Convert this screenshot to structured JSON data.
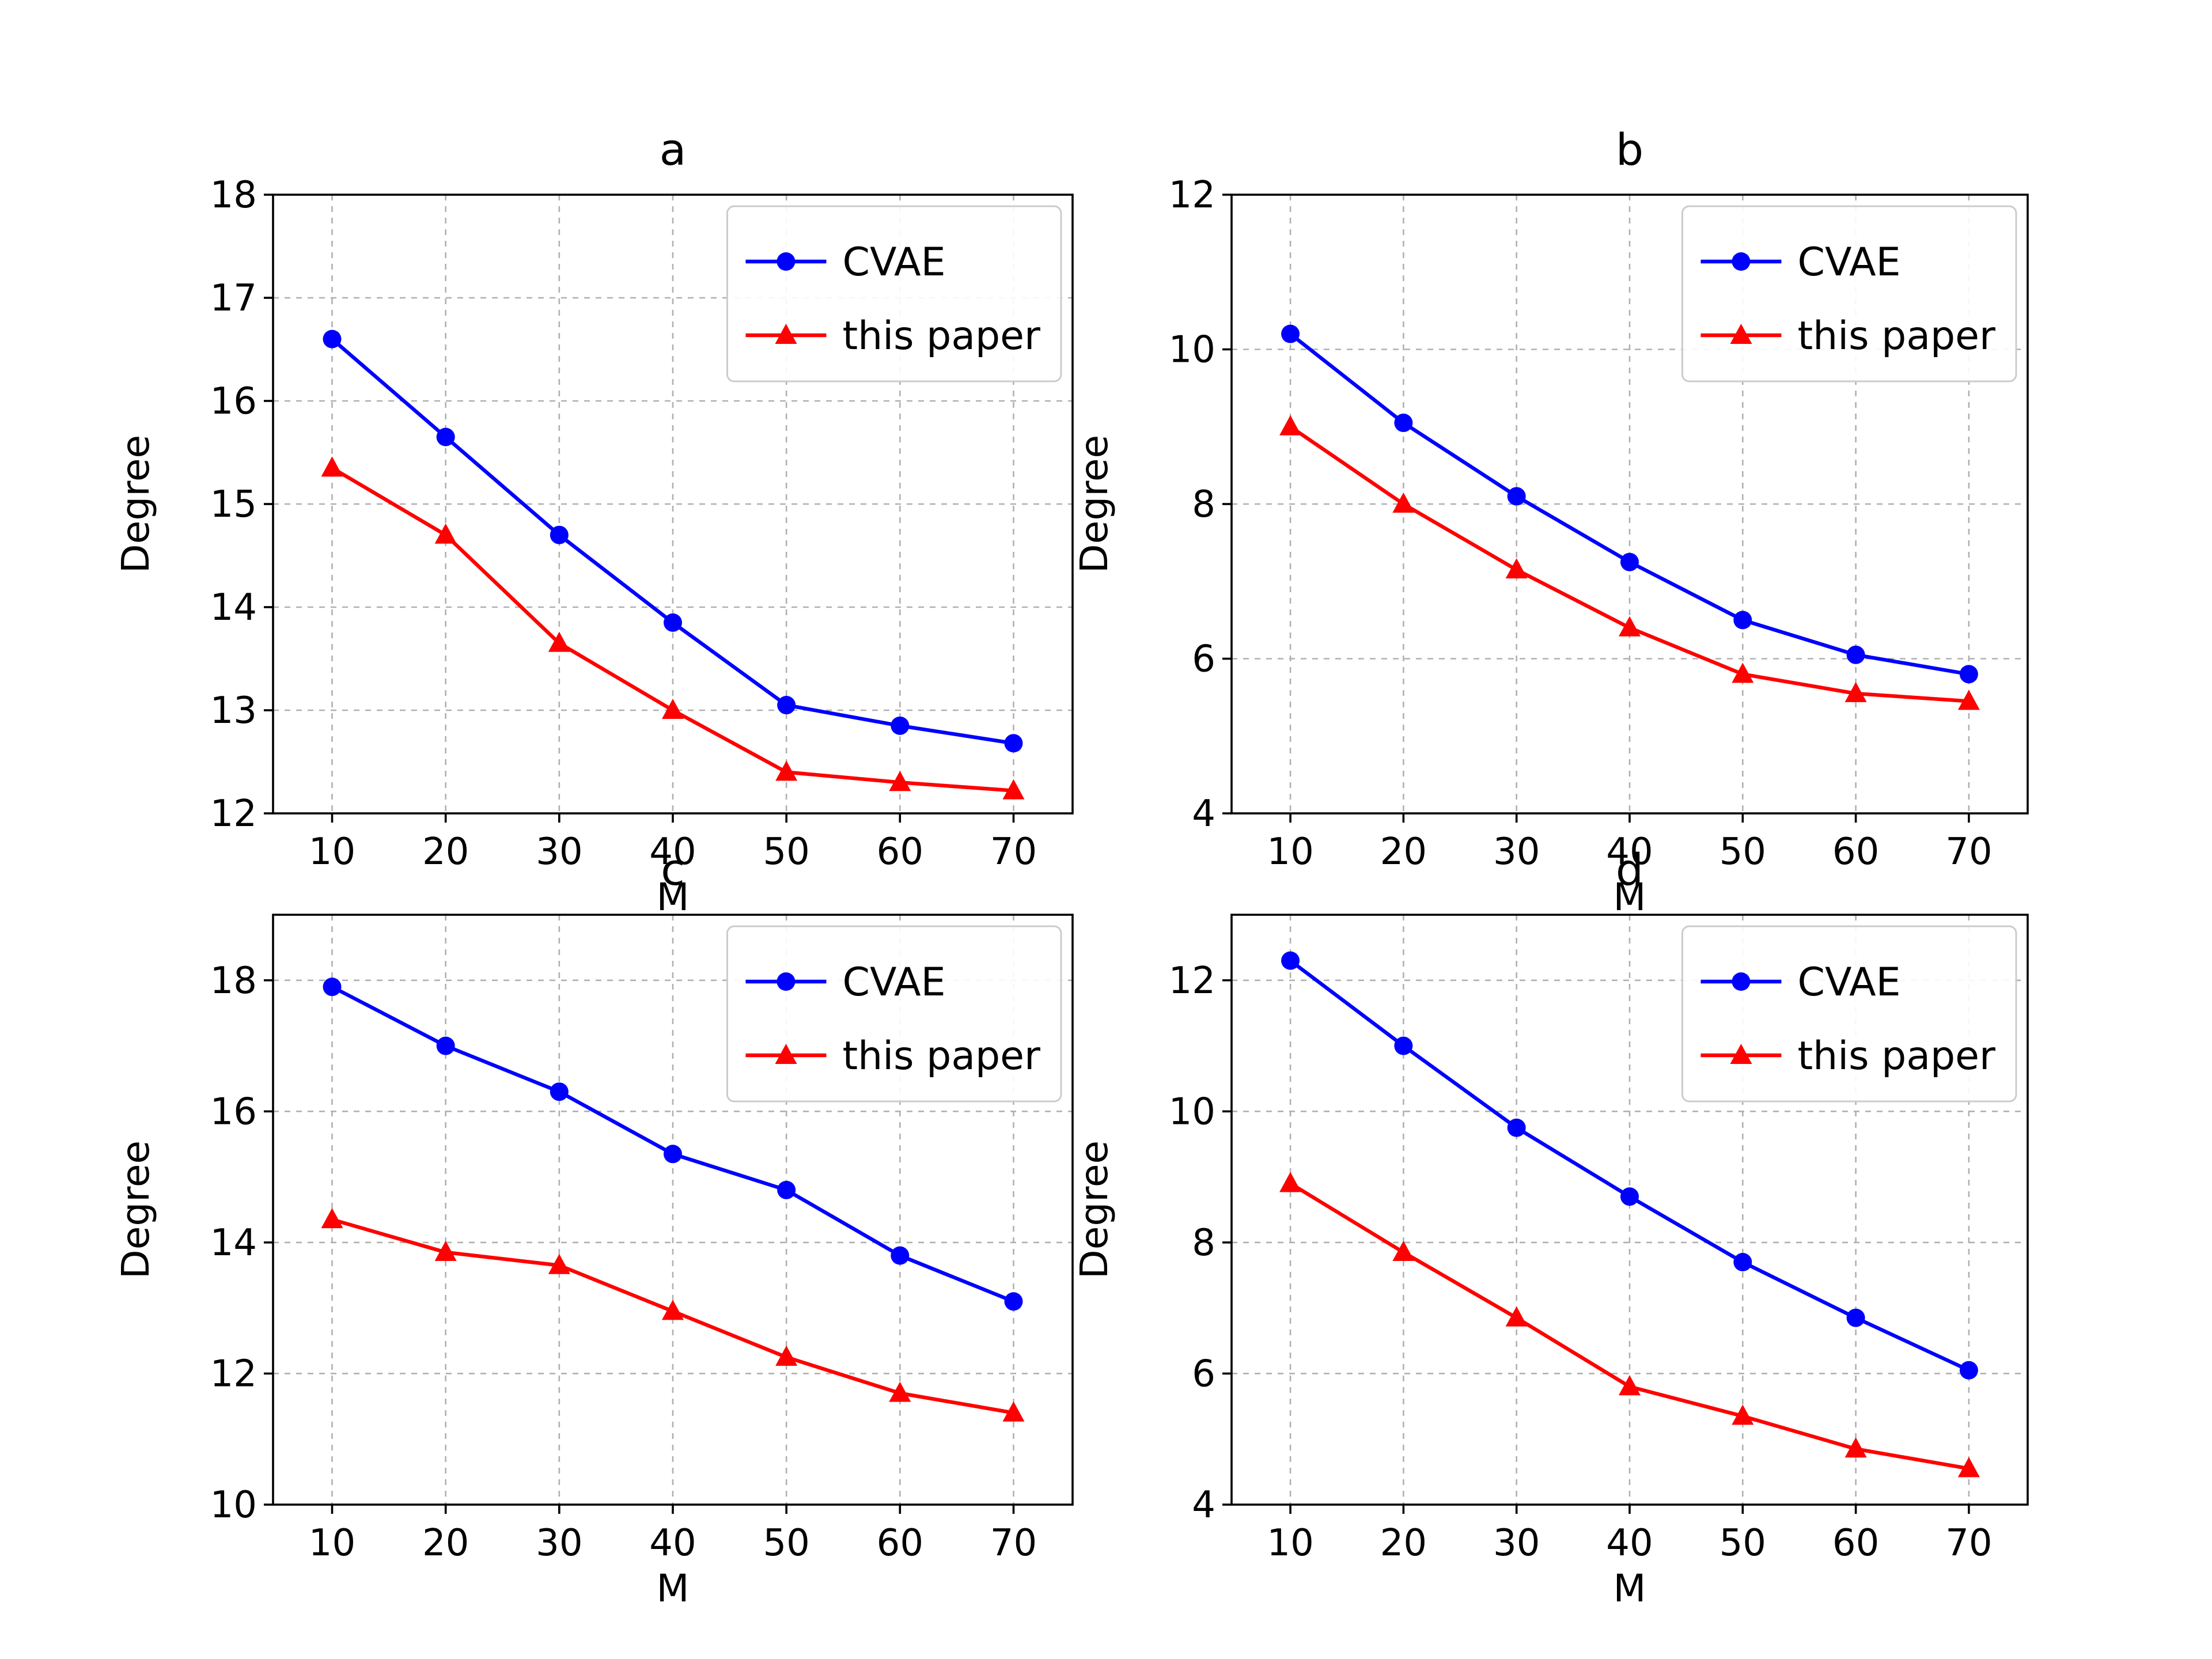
{
  "figure": {
    "background": "#ffffff"
  },
  "colors": {
    "cvae": "#0000ff",
    "this_paper": "#ff0000",
    "grid": "#b0b0b0",
    "axis": "#000000",
    "legend_border": "#cccccc",
    "text": "#000000"
  },
  "legend": {
    "entries": [
      "CVAE",
      "this paper"
    ],
    "position": "upper right"
  },
  "chart_data": [
    {
      "type": "line",
      "title": "a",
      "xlabel": "M",
      "ylabel": "Degree",
      "x": [
        10,
        20,
        30,
        40,
        50,
        60,
        70
      ],
      "xticks": [
        10,
        20,
        30,
        40,
        50,
        60,
        70
      ],
      "yticks": [
        12,
        13,
        14,
        15,
        16,
        17,
        18
      ],
      "xlim": [
        4.8,
        75.2
      ],
      "ylim": [
        12,
        18
      ],
      "grid": true,
      "legend_position": "upper right",
      "series": [
        {
          "name": "CVAE",
          "color": "#0000ff",
          "marker": "circle",
          "values": [
            16.6,
            15.65,
            14.7,
            13.85,
            13.05,
            12.85,
            12.68
          ]
        },
        {
          "name": "this paper",
          "color": "#ff0000",
          "marker": "triangle",
          "values": [
            15.35,
            14.7,
            13.65,
            13.0,
            12.4,
            12.3,
            12.22
          ]
        }
      ]
    },
    {
      "type": "line",
      "title": "b",
      "xlabel": "M",
      "ylabel": "Degree",
      "x": [
        10,
        20,
        30,
        40,
        50,
        60,
        70
      ],
      "xticks": [
        10,
        20,
        30,
        40,
        50,
        60,
        70
      ],
      "yticks": [
        4,
        6,
        8,
        10,
        12
      ],
      "xlim": [
        4.8,
        75.2
      ],
      "ylim": [
        4,
        12
      ],
      "grid": true,
      "legend_position": "upper right",
      "series": [
        {
          "name": "CVAE",
          "color": "#0000ff",
          "marker": "circle",
          "values": [
            10.2,
            9.05,
            8.1,
            7.25,
            6.5,
            6.05,
            5.8
          ]
        },
        {
          "name": "this paper",
          "color": "#ff0000",
          "marker": "triangle",
          "values": [
            9.0,
            8.0,
            7.15,
            6.4,
            5.8,
            5.55,
            5.45
          ]
        }
      ]
    },
    {
      "type": "line",
      "title": "c",
      "xlabel": "M",
      "ylabel": "Degree",
      "x": [
        10,
        20,
        30,
        40,
        50,
        60,
        70
      ],
      "xticks": [
        10,
        20,
        30,
        40,
        50,
        60,
        70
      ],
      "yticks": [
        10,
        12,
        14,
        16,
        18
      ],
      "xlim": [
        4.8,
        75.2
      ],
      "ylim": [
        10,
        19
      ],
      "grid": true,
      "legend_position": "upper right",
      "series": [
        {
          "name": "CVAE",
          "color": "#0000ff",
          "marker": "circle",
          "values": [
            17.9,
            17.0,
            16.3,
            15.35,
            14.8,
            13.8,
            13.1
          ]
        },
        {
          "name": "this paper",
          "color": "#ff0000",
          "marker": "triangle",
          "values": [
            14.35,
            13.85,
            13.65,
            12.95,
            12.25,
            11.7,
            11.4
          ]
        }
      ]
    },
    {
      "type": "line",
      "title": "d",
      "xlabel": "M",
      "ylabel": "Degree",
      "x": [
        10,
        20,
        30,
        40,
        50,
        60,
        70
      ],
      "xticks": [
        10,
        20,
        30,
        40,
        50,
        60,
        70
      ],
      "yticks": [
        4,
        6,
        8,
        10,
        12
      ],
      "xlim": [
        4.8,
        75.2
      ],
      "ylim": [
        4,
        13
      ],
      "grid": true,
      "legend_position": "upper right",
      "series": [
        {
          "name": "CVAE",
          "color": "#0000ff",
          "marker": "circle",
          "values": [
            12.3,
            11.0,
            9.75,
            8.7,
            7.7,
            6.85,
            6.05
          ]
        },
        {
          "name": "this paper",
          "color": "#ff0000",
          "marker": "triangle",
          "values": [
            8.9,
            7.85,
            6.85,
            5.8,
            5.35,
            4.85,
            4.55
          ]
        }
      ]
    }
  ]
}
